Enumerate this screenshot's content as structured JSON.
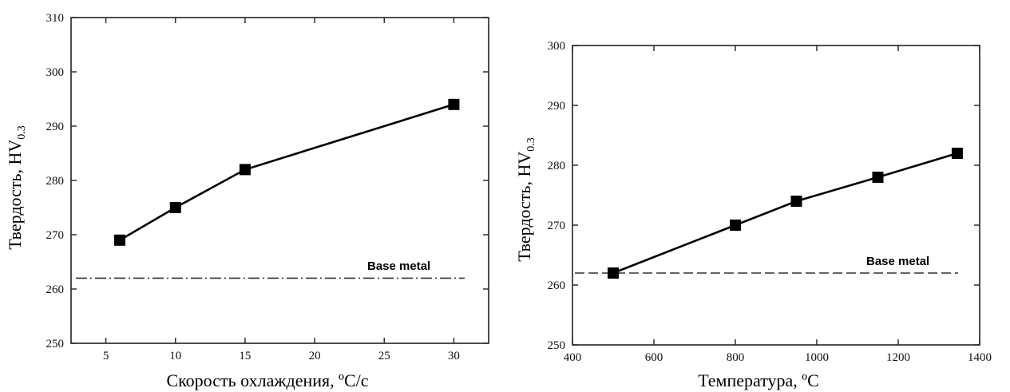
{
  "chart_data": [
    {
      "type": "line",
      "xlabel": "Скорость охлаждения, ",
      "xlabel_unit": "ºC/c",
      "ylabel": "Твердость, HV",
      "ylabel_sub": "0.3",
      "xlim": [
        2.5,
        32.5
      ],
      "ylim": [
        250,
        310
      ],
      "x_ticks": [
        "5",
        "10",
        "15",
        "20",
        "25",
        "30"
      ],
      "x_tick_values": [
        5,
        10,
        15,
        20,
        25,
        30
      ],
      "y_ticks": [
        "250",
        "260",
        "270",
        "280",
        "290",
        "300",
        "310"
      ],
      "y_tick_values": [
        250,
        260,
        270,
        280,
        290,
        300,
        310
      ],
      "grid": false,
      "series": [
        {
          "x": [
            6,
            10,
            15,
            30
          ],
          "y": [
            269,
            275,
            282,
            294
          ]
        }
      ],
      "reference_line": {
        "y": 262,
        "label": "Base metal"
      }
    },
    {
      "type": "line",
      "xlabel": "Температура, ",
      "xlabel_unit": "ºC",
      "ylabel": "Твердость, HV",
      "ylabel_sub": "0.3",
      "xlim": [
        400,
        1400
      ],
      "ylim": [
        250,
        300
      ],
      "x_ticks": [
        "400",
        "600",
        "800",
        "1000",
        "1200",
        "1400"
      ],
      "x_tick_values": [
        400,
        600,
        800,
        1000,
        1200,
        1400
      ],
      "y_ticks": [
        "250",
        "260",
        "270",
        "280",
        "290",
        "300"
      ],
      "y_tick_values": [
        250,
        260,
        270,
        280,
        290,
        300
      ],
      "grid": false,
      "series": [
        {
          "x": [
            500,
            800,
            950,
            1150,
            1345
          ],
          "y": [
            262,
            270,
            274,
            278,
            282
          ]
        }
      ],
      "reference_line": {
        "y": 262,
        "label": "Base metal"
      }
    }
  ]
}
